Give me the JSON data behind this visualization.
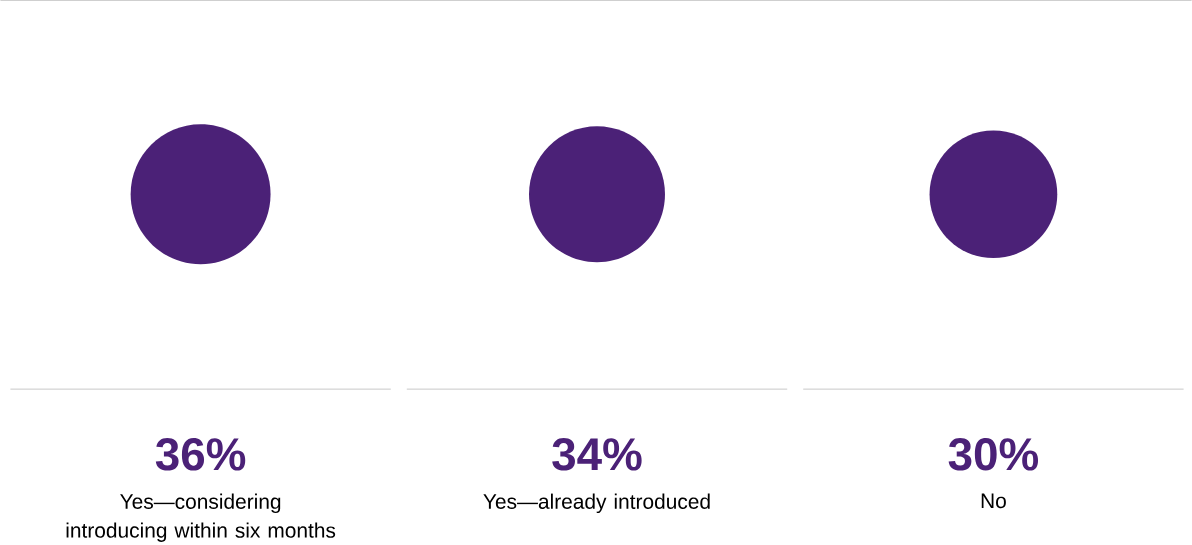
{
  "chart_data": {
    "type": "other",
    "categories": [
      "Yes—considering introducing within six months",
      "Yes—already introduced",
      "No"
    ],
    "values": [
      36,
      34,
      30
    ],
    "value_labels": [
      "36%",
      "34%",
      "30%"
    ],
    "color": "#4b2177"
  }
}
